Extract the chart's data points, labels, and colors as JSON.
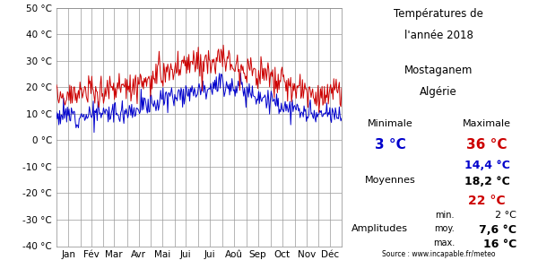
{
  "title_line1": "Températures de",
  "title_line2": "l'année 2018",
  "title_line4": "Mostaganem",
  "title_line5": "Algérie",
  "months": [
    "Jan",
    "Fév",
    "Mar",
    "Avr",
    "Mai",
    "Jui",
    "Jui",
    "Aoû",
    "Sep",
    "Oct",
    "Nov",
    "Déc"
  ],
  "ylim": [
    -40,
    50
  ],
  "yticks": [
    -40,
    -30,
    -20,
    -10,
    0,
    10,
    20,
    30,
    40,
    50
  ],
  "min_blue": 3,
  "max_red": 36,
  "mean_blue": "14,4",
  "mean_black": "18,2",
  "mean_red": 22,
  "amp_min": 2,
  "amp_moy": "7,6",
  "amp_max": 16,
  "source": "Source : www.incapable.fr/meteo",
  "color_red": "#cc0000",
  "color_blue": "#0000cc",
  "color_black": "#000000",
  "background_color": "#ffffff",
  "grid_color": "#999999",
  "min_base": [
    10,
    10,
    10,
    10,
    10,
    10,
    10,
    10,
    10,
    10,
    10,
    10,
    10
  ],
  "max_base": [
    18,
    18,
    19,
    21,
    23,
    27,
    30,
    31,
    28,
    24,
    20,
    17,
    18
  ],
  "min_base_vals": [
    9.5,
    9.5,
    10,
    11,
    13.5,
    17,
    19.5,
    21.5,
    19,
    15,
    11,
    9,
    9.5
  ]
}
